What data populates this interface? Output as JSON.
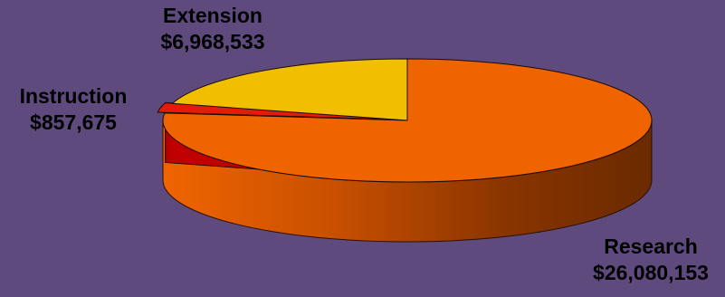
{
  "chart_data": {
    "type": "pie",
    "title": "",
    "three_d": true,
    "legend": "none",
    "slices": [
      {
        "label": "Research",
        "value": 26080153,
        "value_label": "$26,080,153",
        "color": "#f06400"
      },
      {
        "label": "Instruction",
        "value": 857675,
        "value_label": "$857,675",
        "color": "#e41a0a"
      },
      {
        "label": "Extension",
        "value": 6968533,
        "value_label": "$6,968,533",
        "color": "#f0c000"
      }
    ]
  }
}
